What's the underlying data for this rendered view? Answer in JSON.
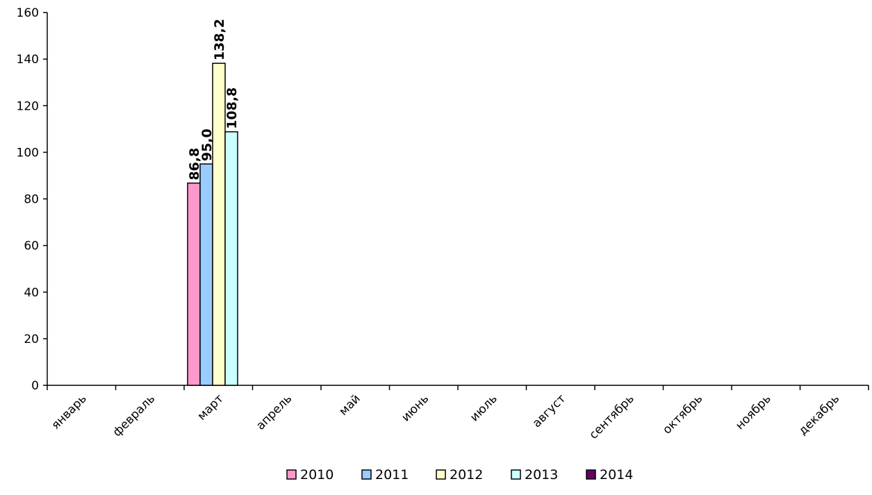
{
  "chart_data": {
    "type": "bar",
    "title": "",
    "xlabel": "",
    "ylabel": "",
    "categories": [
      "январь",
      "февраль",
      "март",
      "апрель",
      "май",
      "июнь",
      "июль",
      "август",
      "сентябрь",
      "октябрь",
      "ноябрь",
      "декабрь"
    ],
    "ylim": [
      0,
      160
    ],
    "yticks": [
      0,
      20,
      40,
      60,
      80,
      100,
      120,
      140,
      160
    ],
    "grid": false,
    "legend_position": "bottom",
    "series": [
      {
        "name": "2010",
        "color": "#FF99CC",
        "values": [
          null,
          null,
          86.8,
          null,
          null,
          null,
          null,
          null,
          null,
          null,
          null,
          null
        ],
        "labels": [
          null,
          null,
          "86,8",
          null,
          null,
          null,
          null,
          null,
          null,
          null,
          null,
          null
        ]
      },
      {
        "name": "2011",
        "color": "#99CCFF",
        "values": [
          null,
          null,
          95.0,
          null,
          null,
          null,
          null,
          null,
          null,
          null,
          null,
          null
        ],
        "labels": [
          null,
          null,
          "95,0",
          null,
          null,
          null,
          null,
          null,
          null,
          null,
          null,
          null
        ]
      },
      {
        "name": "2012",
        "color": "#FFFFCC",
        "values": [
          null,
          null,
          138.2,
          null,
          null,
          null,
          null,
          null,
          null,
          null,
          null,
          null
        ],
        "labels": [
          null,
          null,
          "138,2",
          null,
          null,
          null,
          null,
          null,
          null,
          null,
          null,
          null
        ]
      },
      {
        "name": "2013",
        "color": "#CCFFFF",
        "values": [
          null,
          null,
          108.8,
          null,
          null,
          null,
          null,
          null,
          null,
          null,
          null,
          null
        ],
        "labels": [
          null,
          null,
          "108,8",
          null,
          null,
          null,
          null,
          null,
          null,
          null,
          null,
          null
        ]
      },
      {
        "name": "2014",
        "color": "#660066",
        "values": [
          null,
          null,
          null,
          null,
          null,
          null,
          null,
          null,
          null,
          null,
          null,
          null
        ],
        "labels": [
          null,
          null,
          null,
          null,
          null,
          null,
          null,
          null,
          null,
          null,
          null,
          null
        ]
      }
    ]
  }
}
